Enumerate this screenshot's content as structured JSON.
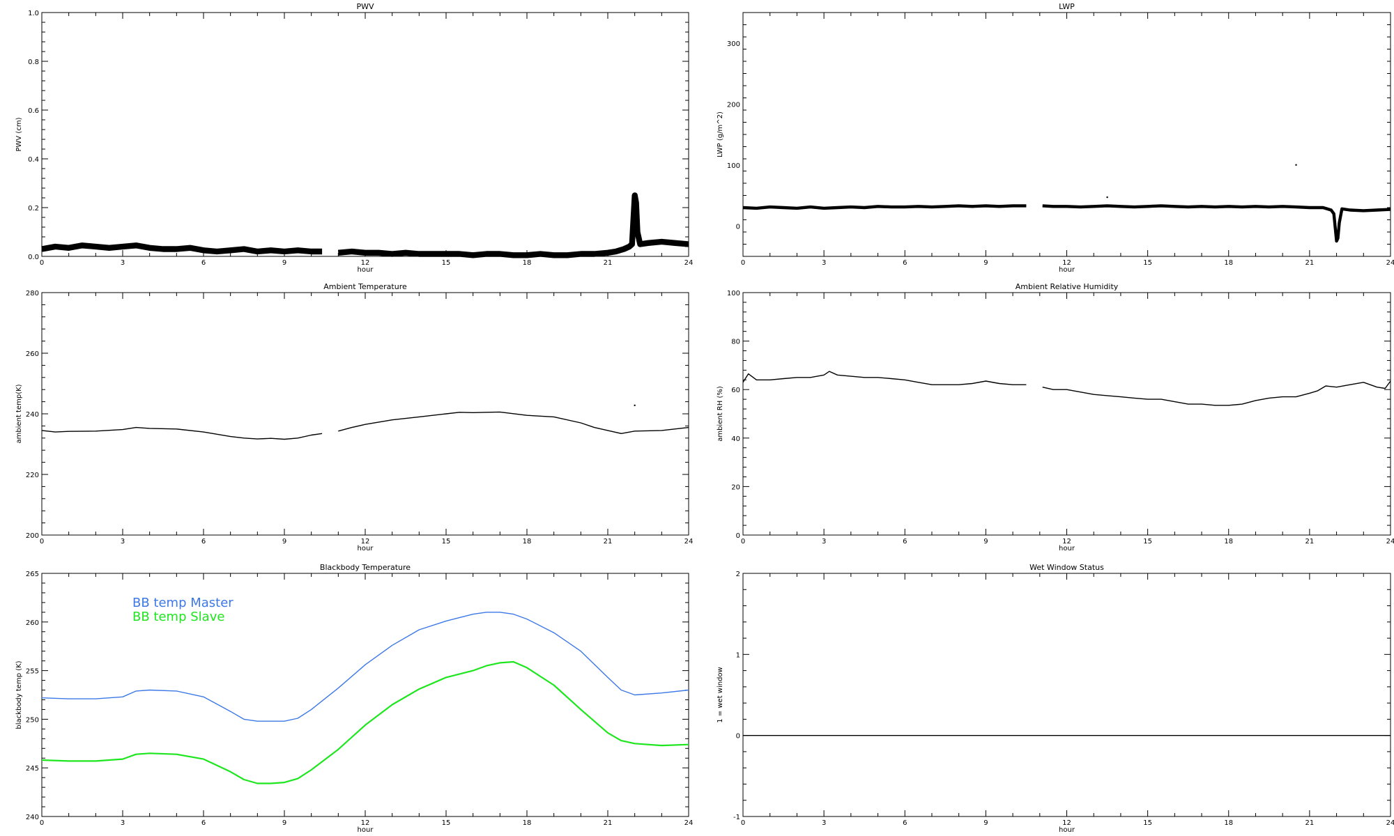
{
  "chart_data": [
    {
      "id": "pwv",
      "type": "line",
      "title": "PWV",
      "xlabel": "hour",
      "ylabel": "PWV (cm)",
      "xlim": [
        0,
        24
      ],
      "ylim": [
        0,
        1.0
      ],
      "xticks": [
        0,
        3,
        6,
        9,
        12,
        15,
        18,
        21,
        24
      ],
      "yticks": [
        0.0,
        0.2,
        0.4,
        0.6,
        0.8,
        1.0
      ],
      "ytick_labels": [
        "0.0",
        "0.2",
        "0.4",
        "0.6",
        "0.8",
        "1.0"
      ],
      "series": [
        {
          "color": "#000000",
          "x": [
            0,
            0.5,
            1,
            1.5,
            2,
            2.5,
            3,
            3.5,
            4,
            4.5,
            5,
            5.5,
            6,
            6.5,
            7,
            7.5,
            8,
            8.5,
            9,
            9.5,
            10,
            10.4,
            null,
            11,
            11.5,
            12,
            12.5,
            13,
            13.5,
            14,
            14.5,
            15,
            15.5,
            16,
            16.5,
            17,
            17.5,
            18,
            18.5,
            19,
            19.5,
            20,
            20.5,
            21,
            21.3,
            21.6,
            21.8,
            21.9,
            22.0,
            22.05,
            22.1,
            22.2,
            22.5,
            23,
            23.5,
            24
          ],
          "y": [
            0.03,
            0.04,
            0.035,
            0.045,
            0.04,
            0.035,
            0.04,
            0.045,
            0.035,
            0.03,
            0.03,
            0.035,
            0.025,
            0.02,
            0.025,
            0.03,
            0.02,
            0.025,
            0.02,
            0.025,
            0.02,
            0.02,
            null,
            0.015,
            0.02,
            0.015,
            0.015,
            0.01,
            0.015,
            0.01,
            0.01,
            0.01,
            0.01,
            0.005,
            0.01,
            0.01,
            0.005,
            0.005,
            0.01,
            0.005,
            0.005,
            0.01,
            0.01,
            0.015,
            0.02,
            0.03,
            0.04,
            0.05,
            0.25,
            0.22,
            0.1,
            0.05,
            0.055,
            0.06,
            0.055,
            0.05
          ],
          "band": 0.012
        }
      ]
    },
    {
      "id": "lwp",
      "type": "line",
      "title": "LWP",
      "xlabel": "hour",
      "ylabel": "LWP (g/m^2)",
      "xlim": [
        0,
        24
      ],
      "ylim": [
        -50,
        350
      ],
      "xticks": [
        0,
        3,
        6,
        9,
        12,
        15,
        18,
        21,
        24
      ],
      "yticks": [
        0,
        100,
        200,
        300
      ],
      "ytick_labels": [
        "0",
        "100",
        "200",
        "300"
      ],
      "series": [
        {
          "color": "#000000",
          "x": [
            0,
            0.5,
            1,
            1.5,
            2,
            2.5,
            3,
            3.5,
            4,
            4.5,
            5,
            5.5,
            6,
            6.5,
            7,
            7.5,
            8,
            8.5,
            9,
            9.5,
            10,
            10.5,
            null,
            11.1,
            11.5,
            12,
            12.5,
            13,
            13.5,
            14,
            14.5,
            15,
            15.5,
            16,
            16.5,
            17,
            17.5,
            18,
            18.5,
            19,
            19.5,
            20,
            20.5,
            21,
            21.5,
            21.8,
            21.9,
            22.0,
            22.05,
            22.1,
            22.2,
            22.5,
            23,
            23.5,
            24
          ],
          "y": [
            30,
            29,
            31,
            30,
            29,
            31,
            29,
            30,
            31,
            30,
            32,
            31,
            31,
            32,
            31,
            32,
            33,
            32,
            33,
            32,
            33,
            33,
            null,
            33,
            32,
            32,
            31,
            32,
            33,
            32,
            31,
            32,
            33,
            32,
            31,
            32,
            31,
            32,
            31,
            32,
            31,
            32,
            31,
            30,
            30,
            26,
            20,
            -25,
            -20,
            5,
            28,
            26,
            25,
            26,
            27
          ],
          "band": 2.5
        }
      ],
      "points": [
        {
          "x": 20.5,
          "y": 100
        },
        {
          "x": 13.5,
          "y": 47
        }
      ]
    },
    {
      "id": "temp",
      "type": "line",
      "title": "Ambient Temperature",
      "xlabel": "hour",
      "ylabel": "ambient temp(K)",
      "xlim": [
        0,
        24
      ],
      "ylim": [
        200,
        280
      ],
      "xticks": [
        0,
        3,
        6,
        9,
        12,
        15,
        18,
        21,
        24
      ],
      "yticks": [
        200,
        220,
        240,
        260,
        280
      ],
      "ytick_labels": [
        "200",
        "220",
        "240",
        "260",
        "280"
      ],
      "series": [
        {
          "color": "#000000",
          "x": [
            0,
            0.5,
            1,
            2,
            3,
            3.5,
            4,
            5,
            6,
            7,
            7.5,
            8,
            8.5,
            9,
            9.5,
            10,
            10.4,
            null,
            11,
            11.5,
            12,
            13,
            14,
            15,
            15.5,
            16,
            16.5,
            17,
            18,
            19,
            20,
            20.5,
            21,
            21.5,
            22,
            23,
            24
          ],
          "y": [
            234.5,
            234,
            234.2,
            234.3,
            234.8,
            235.5,
            235.2,
            235.0,
            234.0,
            232.5,
            232.0,
            231.7,
            231.9,
            231.6,
            232.0,
            233.0,
            233.5,
            null,
            234.3,
            235.5,
            236.5,
            238.0,
            239.0,
            240.0,
            240.5,
            240.4,
            240.5,
            240.6,
            239.5,
            239.0,
            237.0,
            235.5,
            234.5,
            233.5,
            234.3,
            234.5,
            235.5
          ],
          "band": 0
        }
      ],
      "points": [
        {
          "x": 22.0,
          "y": 242.8
        }
      ]
    },
    {
      "id": "rh",
      "type": "line",
      "title": "Ambient Relative Humidity",
      "xlabel": "hour",
      "ylabel": "ambient RH (%)",
      "xlim": [
        0,
        24
      ],
      "ylim": [
        0,
        100
      ],
      "xticks": [
        0,
        3,
        6,
        9,
        12,
        15,
        18,
        21,
        24
      ],
      "yticks": [
        0,
        20,
        40,
        60,
        80,
        100
      ],
      "ytick_labels": [
        "0",
        "20",
        "40",
        "60",
        "80",
        "100"
      ],
      "series": [
        {
          "color": "#000000",
          "x": [
            0,
            0.2,
            0.5,
            1,
            1.5,
            2,
            2.5,
            3,
            3.2,
            3.5,
            4,
            4.5,
            5,
            5.5,
            6,
            6.5,
            7,
            7.5,
            8,
            8.5,
            9,
            9.5,
            10,
            10.5,
            null,
            11.1,
            11.5,
            12,
            12.5,
            13,
            13.5,
            14,
            14.5,
            15,
            15.5,
            16,
            16.5,
            17,
            17.5,
            18,
            18.5,
            19,
            19.5,
            20,
            20.5,
            21,
            21.3,
            21.6,
            22,
            22.5,
            23,
            23.5,
            23.8,
            24
          ],
          "y": [
            63,
            66.5,
            64,
            64,
            64.5,
            65,
            65,
            66,
            67.5,
            66,
            65.5,
            65,
            65,
            64.5,
            64,
            63,
            62,
            62,
            62,
            62.5,
            63.5,
            62.5,
            62,
            62,
            null,
            61,
            60,
            60,
            59,
            58,
            57.5,
            57,
            56.5,
            56,
            56,
            55,
            54,
            54,
            53.5,
            53.5,
            54,
            55.5,
            56.5,
            57,
            57,
            58.5,
            59.5,
            61.5,
            61,
            62,
            63,
            61,
            60.5,
            63.5
          ],
          "band": 0
        }
      ]
    },
    {
      "id": "bb",
      "type": "line",
      "title": "Blackbody Temperature",
      "xlabel": "hour",
      "ylabel": "blackbody temp (K)",
      "xlim": [
        0,
        24
      ],
      "ylim": [
        240,
        265
      ],
      "xticks": [
        0,
        3,
        6,
        9,
        12,
        15,
        18,
        21,
        24
      ],
      "yticks": [
        240,
        245,
        250,
        255,
        260,
        265
      ],
      "ytick_labels": [
        "240",
        "245",
        "250",
        "255",
        "260",
        "265"
      ],
      "legend": [
        "BB temp Master",
        "BB temp Slave"
      ],
      "series": [
        {
          "name": "BB temp Master",
          "color": "#3c78e6",
          "x": [
            0,
            1,
            2,
            3,
            3.5,
            4,
            5,
            6,
            7,
            7.5,
            8,
            8.5,
            9,
            9.5,
            10,
            11,
            12,
            13,
            14,
            15,
            16,
            16.5,
            17,
            17.5,
            18,
            19,
            20,
            21,
            21.5,
            22,
            23,
            24
          ],
          "y": [
            252.2,
            252.1,
            252.1,
            252.3,
            252.9,
            253.0,
            252.9,
            252.3,
            250.8,
            250.0,
            249.8,
            249.8,
            249.8,
            250.1,
            251.0,
            253.2,
            255.6,
            257.6,
            259.2,
            260.1,
            260.8,
            261.0,
            261.0,
            260.8,
            260.3,
            258.9,
            257.0,
            254.3,
            253.0,
            252.5,
            252.7,
            253.0
          ],
          "band": 0
        },
        {
          "name": "BB temp Slave",
          "color": "#1ee61e",
          "x": [
            0,
            1,
            2,
            3,
            3.5,
            4,
            5,
            6,
            7,
            7.5,
            8,
            8.5,
            9,
            9.5,
            10,
            11,
            12,
            13,
            14,
            15,
            16,
            16.5,
            17,
            17.5,
            18,
            19,
            20,
            21,
            21.5,
            22,
            23,
            24
          ],
          "y": [
            245.8,
            245.7,
            245.7,
            245.9,
            246.4,
            246.5,
            246.4,
            245.9,
            244.6,
            243.8,
            243.4,
            243.4,
            243.5,
            243.9,
            244.8,
            246.9,
            249.4,
            251.5,
            253.1,
            254.3,
            255.0,
            255.5,
            255.8,
            255.9,
            255.3,
            253.5,
            251.0,
            248.6,
            247.8,
            247.5,
            247.3,
            247.4
          ],
          "band": 0.08
        }
      ]
    },
    {
      "id": "wet",
      "type": "line",
      "title": "Wet Window Status",
      "xlabel": "hour",
      "ylabel": "1 = wet window",
      "xlim": [
        0,
        24
      ],
      "ylim": [
        -1,
        2
      ],
      "xticks": [
        0,
        3,
        6,
        9,
        12,
        15,
        18,
        21,
        24
      ],
      "yticks": [
        -1,
        0,
        1,
        2
      ],
      "ytick_labels": [
        "-1",
        "0",
        "1",
        "2"
      ],
      "series": [
        {
          "color": "#000000",
          "x": [
            0,
            24
          ],
          "y": [
            0,
            0
          ],
          "band": 0
        }
      ]
    }
  ]
}
